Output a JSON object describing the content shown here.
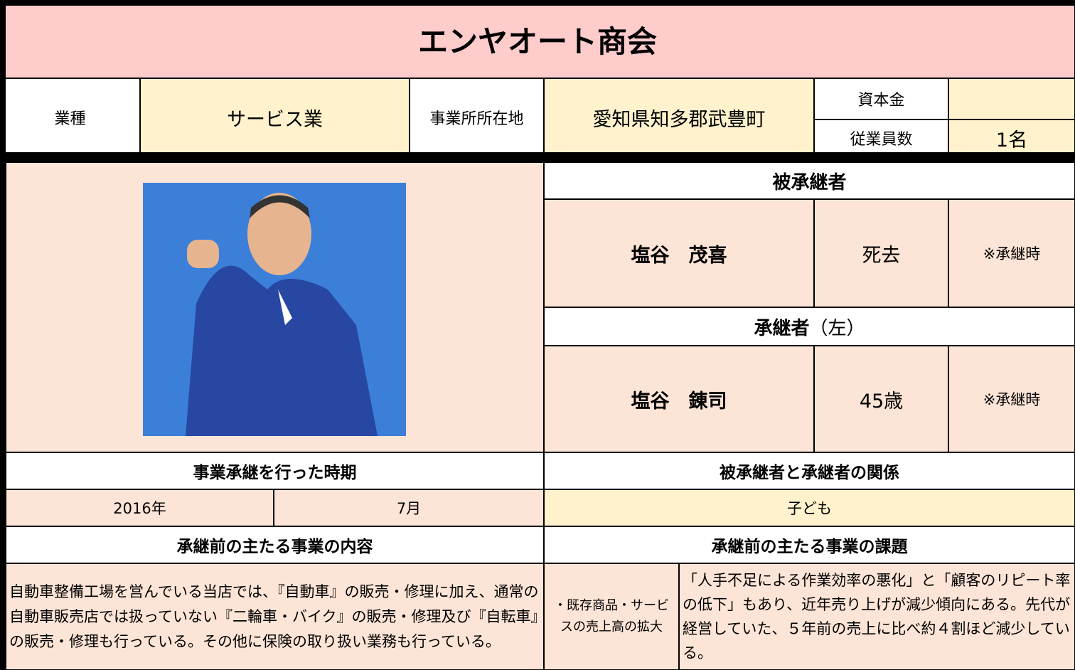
{
  "title": "エンヤオート商会",
  "info": {
    "industry_label": "業種",
    "industry": "サービス業",
    "location_label": "事業所所在地",
    "location": "愛知県知多郡武豊町",
    "capital_label": "資本金",
    "employees_label": "従業員数",
    "employees": "1名"
  },
  "predecessor": {
    "heading": "被承継者",
    "name": "塩谷　茂喜",
    "age": "死去",
    "note": "※承継時"
  },
  "successor": {
    "heading": "承継者",
    "heading_note": "（左）",
    "name": "塩谷　錬司",
    "age": "45歳",
    "note": "※承継時"
  },
  "timing": {
    "heading": "事業承継を行った時期",
    "year": "2016年",
    "month": "7月"
  },
  "relation": {
    "heading": "被承継者と承継者の関係",
    "value": "子ども"
  },
  "business": {
    "heading": "承継前の主たる事業の内容",
    "text": "自動車整備工場を営んでいる当店では、『自動車』の販売・修理に加え、通常の自動車販売店では扱っていない『二輪車・バイク』の販売・修理及び『自転車』の販売・修理も行っている。その他に保険の取り扱い業務も行っている。"
  },
  "issues": {
    "heading": "承継前の主たる事業の課題",
    "item": "・既存商品・サービスの売上高の拡大",
    "text": "「人手不足による作業効率の悪化」と「顧客のリピート率の低下」もあり、近年売り上げが減少傾向にある。先代が経営していた、５年前の売上に比べ約４割ほど減少している。"
  }
}
